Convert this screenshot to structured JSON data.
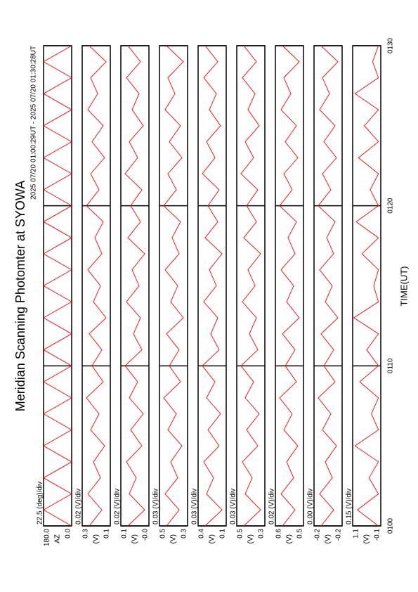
{
  "chart_data": {
    "type": "line",
    "title": "Meridian Scanning Photomter at SYOWA",
    "subtitle": "2025 07/20 01:00:29UT - 2025 07/20 01:30:28UT",
    "xlabel": "TIME(UT)",
    "color": "#ff0000",
    "xlim": [
      0,
      30
    ],
    "xticks": [
      {
        "value": 0,
        "label": "0100"
      },
      {
        "value": 10,
        "label": "0110"
      },
      {
        "value": 20,
        "label": "0120"
      },
      {
        "value": 30,
        "label": "0130"
      }
    ],
    "x": [
      0,
      1,
      2,
      3,
      4,
      5,
      6,
      7,
      8,
      9,
      10,
      11,
      12,
      13,
      14,
      15,
      16,
      17,
      18,
      19,
      20,
      21,
      22,
      23,
      24,
      25,
      26,
      27,
      28,
      29,
      30
    ],
    "panels": [
      {
        "scale": "22.5 (deg)/div",
        "unit": "AZ",
        "ylim": [
          0,
          180
        ],
        "yticks": [
          {
            "value": 0,
            "label": "0.0"
          },
          {
            "value": 180,
            "label": "180.0"
          }
        ],
        "values": [
          0,
          180,
          0,
          180,
          0,
          180,
          0,
          180,
          0,
          180,
          0,
          180,
          0,
          180,
          0,
          180,
          0,
          180,
          0,
          180,
          0,
          180,
          0,
          180,
          0,
          180,
          0,
          180,
          0,
          180,
          0
        ]
      },
      {
        "scale": "0.02 (V)/div",
        "unit": "(V)",
        "ylim": [
          0.1,
          0.3
        ],
        "yticks": [
          0.1,
          0.3
        ],
        "values": [
          0.25,
          0.16,
          0.26,
          0.17,
          0.22,
          0.14,
          0.24,
          0.18,
          0.27,
          0.15,
          0.23,
          0.16,
          0.25,
          0.13,
          0.22,
          0.17,
          0.26,
          0.16,
          0.21,
          0.15,
          0.27,
          0.18,
          0.24,
          0.14,
          0.23,
          0.15,
          0.26,
          0.19,
          0.24,
          0.13,
          0.25
        ]
      },
      {
        "scale": "0.02 (V)/div",
        "unit": "(V)",
        "ylim": [
          0,
          0.1
        ],
        "yticks": [
          {
            "value": 0,
            "label": "-0.0"
          },
          0.1
        ],
        "values": [
          0.075,
          0.015,
          0.07,
          0.045,
          0.08,
          0.025,
          0.065,
          0.02,
          0.07,
          0.04,
          0.085,
          0.025,
          0.055,
          0.03,
          0.08,
          0.035,
          0.06,
          0.015,
          0.075,
          0.03,
          0.065,
          0.025,
          0.085,
          0.04,
          0.07,
          0.02,
          0.06,
          0.035,
          0.08,
          0.03,
          0.075
        ]
      },
      {
        "scale": "0.03 (V)/div",
        "unit": "(V)",
        "ylim": [
          0.3,
          0.5
        ],
        "yticks": [
          0.3,
          0.5
        ],
        "values": [
          0.45,
          0.36,
          0.46,
          0.37,
          0.42,
          0.34,
          0.44,
          0.38,
          0.47,
          0.35,
          0.43,
          0.36,
          0.45,
          0.33,
          0.42,
          0.37,
          0.46,
          0.36,
          0.41,
          0.35,
          0.47,
          0.38,
          0.44,
          0.34,
          0.43,
          0.35,
          0.46,
          0.39,
          0.44,
          0.33,
          0.45
        ]
      },
      {
        "scale": "0.03 (V)/div",
        "unit": "(V)",
        "ylim": [
          0.1,
          0.4
        ],
        "yticks": [
          0.1,
          0.4
        ],
        "values": [
          0.325,
          0.145,
          0.31,
          0.235,
          0.34,
          0.175,
          0.295,
          0.16,
          0.31,
          0.22,
          0.355,
          0.175,
          0.265,
          0.19,
          0.34,
          0.205,
          0.28,
          0.145,
          0.325,
          0.19,
          0.295,
          0.175,
          0.355,
          0.22,
          0.31,
          0.16,
          0.28,
          0.205,
          0.34,
          0.19,
          0.325
        ]
      },
      {
        "scale": "0.03 (V)/div",
        "unit": "(V)",
        "ylim": [
          0.3,
          0.5
        ],
        "yticks": [
          0.3,
          0.5
        ],
        "values": [
          0.45,
          0.33,
          0.44,
          0.39,
          0.46,
          0.35,
          0.43,
          0.34,
          0.44,
          0.38,
          0.47,
          0.35,
          0.41,
          0.36,
          0.46,
          0.37,
          0.42,
          0.33,
          0.45,
          0.36,
          0.43,
          0.35,
          0.47,
          0.38,
          0.44,
          0.34,
          0.42,
          0.37,
          0.46,
          0.36,
          0.45
        ]
      },
      {
        "scale": "0.02 (V)/div",
        "unit": "(V)",
        "ylim": [
          0.5,
          0.6
        ],
        "yticks": [
          0.5,
          0.6
        ],
        "values": [
          0.575,
          0.53,
          0.58,
          0.535,
          0.56,
          0.52,
          0.57,
          0.54,
          0.585,
          0.525,
          0.565,
          0.53,
          0.575,
          0.515,
          0.56,
          0.535,
          0.58,
          0.53,
          0.555,
          0.525,
          0.585,
          0.54,
          0.57,
          0.52,
          0.565,
          0.525,
          0.58,
          0.545,
          0.57,
          0.515,
          0.575
        ]
      },
      {
        "scale": "0.00 (V)/div",
        "unit": "(V)",
        "ylim": [
          -0.24,
          -0.16
        ],
        "yticks": [
          {
            "value": -0.24,
            "label": "-0.2"
          },
          {
            "value": -0.16,
            "label": "-0.2"
          }
        ],
        "values": [
          -0.18,
          -0.216,
          -0.176,
          -0.212,
          -0.192,
          -0.224,
          -0.184,
          -0.208,
          -0.172,
          -0.22,
          -0.188,
          -0.216,
          -0.18,
          -0.228,
          -0.192,
          -0.212,
          -0.176,
          -0.216,
          -0.196,
          -0.22,
          -0.172,
          -0.208,
          -0.184,
          -0.224,
          -0.188,
          -0.22,
          -0.176,
          -0.204,
          -0.184,
          -0.228,
          -0.18
        ]
      },
      {
        "scale": "0.15 (V)/div",
        "unit": "(V)",
        "ylim": [
          -0.1,
          1.1
        ],
        "yticks": [
          -0.1,
          1.1
        ],
        "values": [
          0,
          0.9,
          0,
          0.4,
          0,
          1.0,
          0,
          0.3,
          0,
          0.8,
          0,
          0.5,
          0,
          1.05,
          0,
          0.2,
          0,
          0.7,
          0,
          0.95,
          0,
          0.35,
          0,
          0.85,
          0,
          0.6,
          0,
          1.0,
          0,
          0.25,
          0
        ]
      }
    ]
  }
}
